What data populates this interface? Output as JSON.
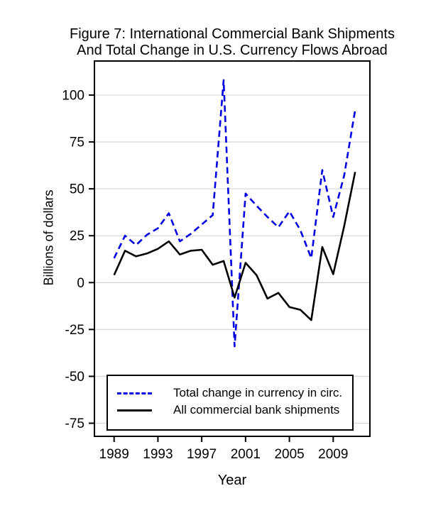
{
  "figure": {
    "title_line1": "Figure 7: International Commercial Bank Shipments",
    "title_line2": "And Total Change in U.S. Currency Flows Abroad"
  },
  "axes": {
    "y_title": "Billions of dollars",
    "x_title": "Year"
  },
  "legend": {
    "items": [
      {
        "label": "Total change in currency in circ.",
        "style": "dashed",
        "color": "#0000e0"
      },
      {
        "label": "All commercial bank shipments",
        "style": "solid",
        "color": "#000000"
      }
    ]
  },
  "chart_data": {
    "type": "line",
    "title": "Figure 7: International Commercial Bank Shipments And Total Change in U.S. Currency Flows Abroad",
    "xlabel": "Year",
    "ylabel": "Billions of dollars",
    "x": [
      1989,
      1990,
      1991,
      1992,
      1993,
      1994,
      1995,
      1996,
      1997,
      1998,
      1999,
      2000,
      2001,
      2002,
      2003,
      2004,
      2005,
      2006,
      2007,
      2008,
      2009,
      2010,
      2011
    ],
    "series": [
      {
        "name": "Total change in currency in circ.",
        "color": "#0000e0",
        "line_style": "dashed",
        "values": [
          13,
          25,
          20,
          25.5,
          29,
          37,
          22,
          26,
          31,
          36,
          108,
          -34,
          47.5,
          41,
          35,
          29.5,
          38,
          28,
          13,
          60,
          35,
          57,
          92
        ]
      },
      {
        "name": "All commercial bank shipments",
        "color": "#000000",
        "line_style": "solid",
        "values": [
          4,
          17,
          14,
          15.5,
          18,
          22,
          15,
          17,
          17.5,
          9.5,
          11.5,
          -8,
          10.5,
          4,
          -8.5,
          -5.5,
          -13,
          -14.5,
          -20,
          19,
          4.5,
          30,
          59
        ]
      }
    ],
    "y_ticks": [
      100,
      75,
      50,
      25,
      0,
      -25,
      -50,
      -75
    ],
    "x_ticks": [
      1989,
      1993,
      1997,
      2001,
      2005,
      2009
    ],
    "ylim": [
      -97,
      118
    ],
    "xlim": [
      1987.2,
      2012.3
    ],
    "grid": "horizontal",
    "gridline_color": "#d9d9d9",
    "legend_position": "bottom-left-inside"
  }
}
